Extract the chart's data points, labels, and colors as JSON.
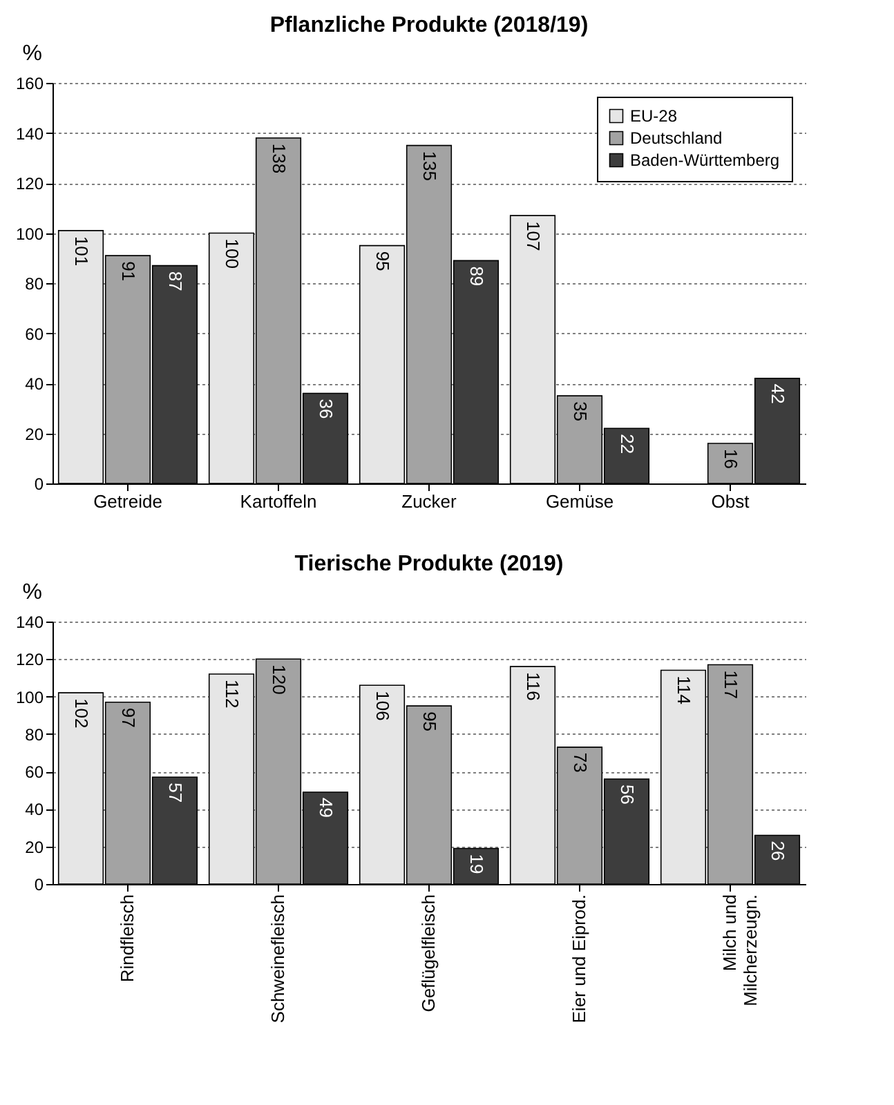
{
  "chart_data": [
    {
      "type": "bar",
      "title": "Pflanzliche Produkte (2018/19)",
      "ylabel": "%",
      "categories": [
        "Getreide",
        "Kartoffeln",
        "Zucker",
        "Gemüse",
        "Obst"
      ],
      "series": [
        {
          "name": "EU-28",
          "color": "#e6e6e6",
          "values": [
            101,
            100,
            95,
            107,
            null
          ]
        },
        {
          "name": "Deutschland",
          "color": "#a3a3a3",
          "values": [
            91,
            138,
            135,
            35,
            16
          ]
        },
        {
          "name": "Baden-Württemberg",
          "color": "#3d3d3d",
          "values": [
            87,
            36,
            89,
            22,
            42
          ]
        }
      ],
      "ylim": [
        0,
        160
      ],
      "yticks": [
        0,
        20,
        40,
        60,
        80,
        100,
        120,
        140,
        160
      ],
      "grid": "y",
      "legend": "top right",
      "data_labels": true
    },
    {
      "type": "bar",
      "title": "Tierische Produkte (2019)",
      "ylabel": "%",
      "categories": [
        "Rindfleisch",
        "Schweinefleisch",
        "Geflügelfleisch",
        "Eier und Eiprod.",
        "Milch und\nMilcherzeugn."
      ],
      "series": [
        {
          "color": "#e6e6e6",
          "values": [
            102,
            112,
            106,
            116,
            114
          ]
        },
        {
          "color": "#a3a3a3",
          "values": [
            97,
            120,
            95,
            73,
            117
          ]
        },
        {
          "color": "#3d3d3d",
          "values": [
            57,
            49,
            19,
            56,
            26
          ]
        }
      ],
      "ylim": [
        0,
        140
      ],
      "yticks": [
        0,
        20,
        40,
        60,
        80,
        100,
        120,
        140
      ],
      "grid": "y",
      "data_labels": true
    }
  ]
}
